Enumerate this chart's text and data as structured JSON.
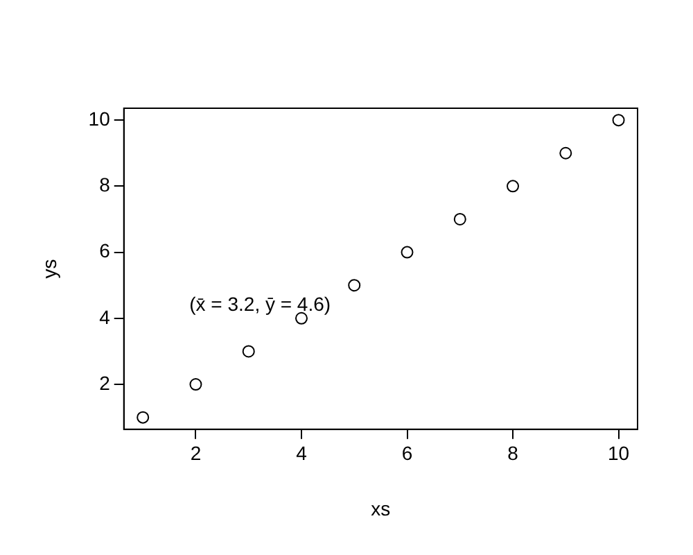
{
  "chart_data": {
    "type": "scatter",
    "xlabel": "xs",
    "ylabel": "ys",
    "x": [
      1,
      2,
      3,
      4,
      5,
      6,
      7,
      8,
      9,
      10
    ],
    "series": [
      {
        "color": "#000000",
        "values": [
          1,
          2,
          3,
          4,
          5,
          6,
          7,
          8,
          9,
          10
        ]
      }
    ],
    "xlim": [
      0.64,
      10.36
    ],
    "xticks": [
      2,
      4,
      6,
      8,
      10
    ],
    "ylim": [
      0.64,
      10.36
    ],
    "yticks": [
      2,
      4,
      6,
      8,
      10
    ],
    "marker": "circle",
    "grid": false,
    "legend": false,
    "annotations": [
      "(x̄ = 3.2, ȳ = 4.6)"
    ]
  }
}
